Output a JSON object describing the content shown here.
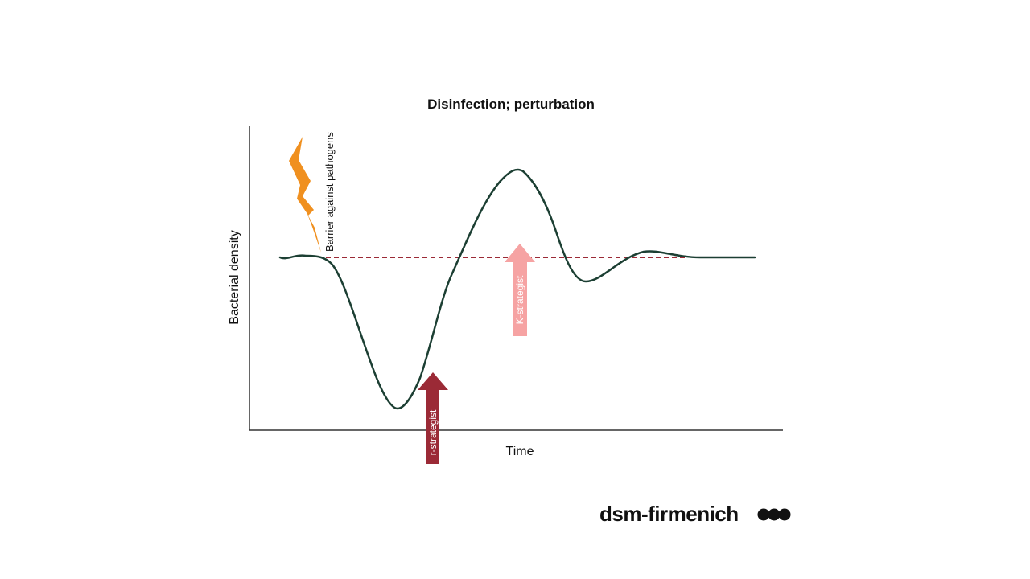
{
  "diagram": {
    "title": "Disinfection; perturbation",
    "y_axis_label": "Bacterial density",
    "x_axis_label": "Time",
    "disturbance_label": "Barrier against pathogens",
    "arrows": {
      "r": {
        "label": "r-strategist",
        "color": "#9b2a36"
      },
      "k": {
        "label": "K-strategist",
        "color": "#f6a3a3"
      }
    },
    "colors": {
      "curve": "#1c3f33",
      "baseline": "#9b2a36",
      "lightning": "#f0901f",
      "axes": "#333333"
    },
    "icons": {
      "disturbance": "lightning-bolt-icon",
      "logo_mark": "three-dots-logo"
    }
  },
  "brand": {
    "name": "dsm-firmenich"
  }
}
